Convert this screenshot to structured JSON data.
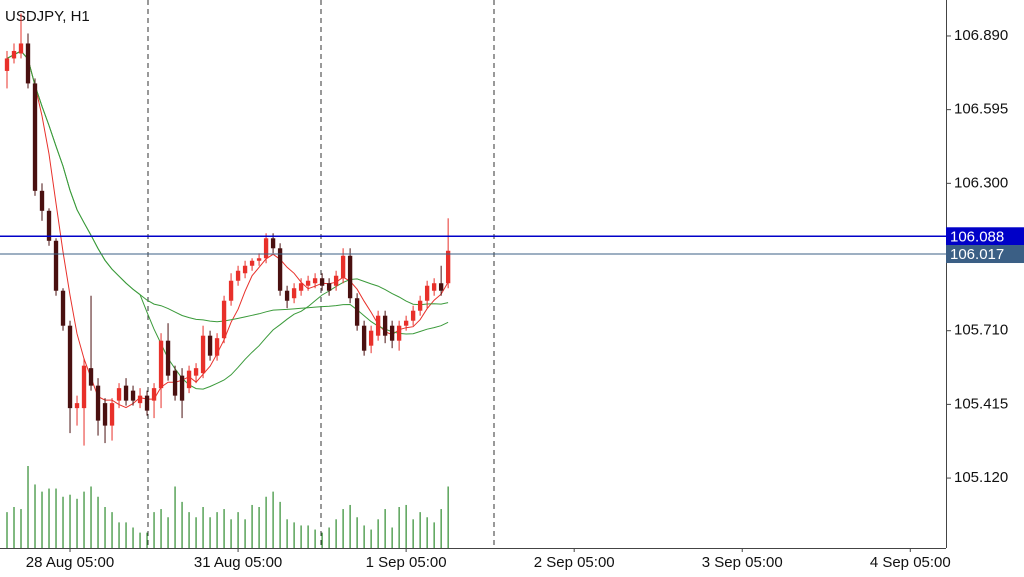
{
  "chart_data": {
    "type": "candlestick",
    "title": "USDJPY, H1",
    "up_color": "#e8302a",
    "down_color": "#4a1010",
    "volume_color": "#2e8b2e",
    "open": [
      106.75,
      106.8,
      106.82,
      106.86,
      106.7,
      106.27,
      106.19,
      106.07,
      105.87,
      105.73,
      105.4,
      105.4,
      105.56,
      105.49,
      105.42,
      105.33,
      105.43,
      105.49,
      105.47,
      105.42,
      105.45,
      105.43,
      105.48,
      105.67,
      105.55,
      105.53,
      105.48,
      105.53,
      105.54,
      105.69,
      105.61,
      105.68,
      105.83,
      105.91,
      105.94,
      105.97,
      105.99,
      106.0,
      106.08,
      106.04,
      105.87,
      105.84,
      105.87,
      105.89,
      105.9,
      105.92,
      105.9,
      105.89,
      105.92,
      106.01,
      105.84,
      105.73,
      105.65,
      105.69,
      105.77,
      105.73,
      105.67,
      105.73,
      105.75,
      105.79,
      105.83,
      105.87,
      105.9,
      105.9
    ],
    "high": [
      106.83,
      106.86,
      106.98,
      106.9,
      106.72,
      106.3,
      106.2,
      106.08,
      105.88,
      105.75,
      105.45,
      105.6,
      105.85,
      105.52,
      105.44,
      105.44,
      105.5,
      105.52,
      105.49,
      105.48,
      105.47,
      105.5,
      105.7,
      105.74,
      105.57,
      105.56,
      105.57,
      105.58,
      105.73,
      105.71,
      105.7,
      105.85,
      105.94,
      105.97,
      105.99,
      106.0,
      106.02,
      106.1,
      106.1,
      106.06,
      105.89,
      105.9,
      105.92,
      105.93,
      105.94,
      105.94,
      105.92,
      105.95,
      106.04,
      106.04,
      105.86,
      105.75,
      105.73,
      105.79,
      105.79,
      105.75,
      105.75,
      105.77,
      105.81,
      105.85,
      105.91,
      105.92,
      105.97,
      106.16
    ],
    "low": [
      106.68,
      106.78,
      106.8,
      106.68,
      106.25,
      106.15,
      106.05,
      105.85,
      105.71,
      105.3,
      105.33,
      105.25,
      105.47,
      105.29,
      105.26,
      105.27,
      105.4,
      105.41,
      105.41,
      105.4,
      105.37,
      105.36,
      105.4,
      105.51,
      105.43,
      105.36,
      105.46,
      105.5,
      105.52,
      105.59,
      105.59,
      105.66,
      105.81,
      105.89,
      105.92,
      105.95,
      105.97,
      105.98,
      106.02,
      105.85,
      105.8,
      105.82,
      105.85,
      105.87,
      105.88,
      105.87,
      105.85,
      105.87,
      105.9,
      105.82,
      105.71,
      105.61,
      105.62,
      105.67,
      105.66,
      105.64,
      105.63,
      105.71,
      105.73,
      105.77,
      105.8,
      105.85,
      105.85,
      105.88
    ],
    "close": [
      106.8,
      106.83,
      106.86,
      106.7,
      106.27,
      106.19,
      106.07,
      105.87,
      105.73,
      105.4,
      105.42,
      105.57,
      105.49,
      105.35,
      105.33,
      105.42,
      105.48,
      105.43,
      105.43,
      105.45,
      105.39,
      105.48,
      105.67,
      105.53,
      105.45,
      105.43,
      105.55,
      105.56,
      105.69,
      105.61,
      105.68,
      105.83,
      105.91,
      105.95,
      105.97,
      105.99,
      106.0,
      106.08,
      106.04,
      105.87,
      105.83,
      105.88,
      105.9,
      105.91,
      105.92,
      105.89,
      105.87,
      105.93,
      106.01,
      105.84,
      105.73,
      105.63,
      105.71,
      105.77,
      105.69,
      105.67,
      105.73,
      105.75,
      105.79,
      105.83,
      105.89,
      105.9,
      105.87,
      106.03
    ],
    "volume": [
      35,
      40,
      38,
      80,
      62,
      55,
      58,
      58,
      50,
      52,
      48,
      55,
      60,
      50,
      40,
      35,
      25,
      25,
      20,
      15,
      15,
      35,
      38,
      30,
      60,
      45,
      35,
      30,
      40,
      30,
      35,
      38,
      28,
      35,
      28,
      42,
      40,
      50,
      55,
      45,
      28,
      25,
      22,
      22,
      18,
      15,
      20,
      28,
      38,
      42,
      30,
      22,
      18,
      28,
      38,
      20,
      40,
      42,
      28,
      35,
      30,
      25,
      38,
      60
    ],
    "moving_averages": [
      {
        "period": 5,
        "color": "#e8302a"
      },
      {
        "period": 20,
        "color": "#3a9a3a"
      },
      {
        "period": 50,
        "color": "#3a9a3a"
      }
    ],
    "xlim": [
      -1,
      134.1
    ],
    "xticks": [
      {
        "value": 9,
        "label": "28 Aug 05:00"
      },
      {
        "value": 33,
        "label": "31 Aug 05:00"
      },
      {
        "value": 57,
        "label": "1 Sep 05:00"
      },
      {
        "value": 81,
        "label": "2 Sep 05:00"
      },
      {
        "value": 105,
        "label": "3 Sep 05:00"
      },
      {
        "value": 129,
        "label": "4 Sep 05:00"
      }
    ],
    "ylim": [
      104.84,
      107.034
    ],
    "yticks": [
      {
        "value": 106.89,
        "label": "106.890"
      },
      106.595,
      {
        "value": 106.3,
        "label": "106.300"
      },
      {
        "value": 105.71,
        "label": "105.710"
      },
      105.415,
      {
        "value": 105.12,
        "label": "105.120"
      }
    ],
    "price_lines": [
      {
        "value": 106.088,
        "color": "#0000c8"
      },
      {
        "value": 106.017,
        "color": "#3b5f85"
      }
    ]
  }
}
